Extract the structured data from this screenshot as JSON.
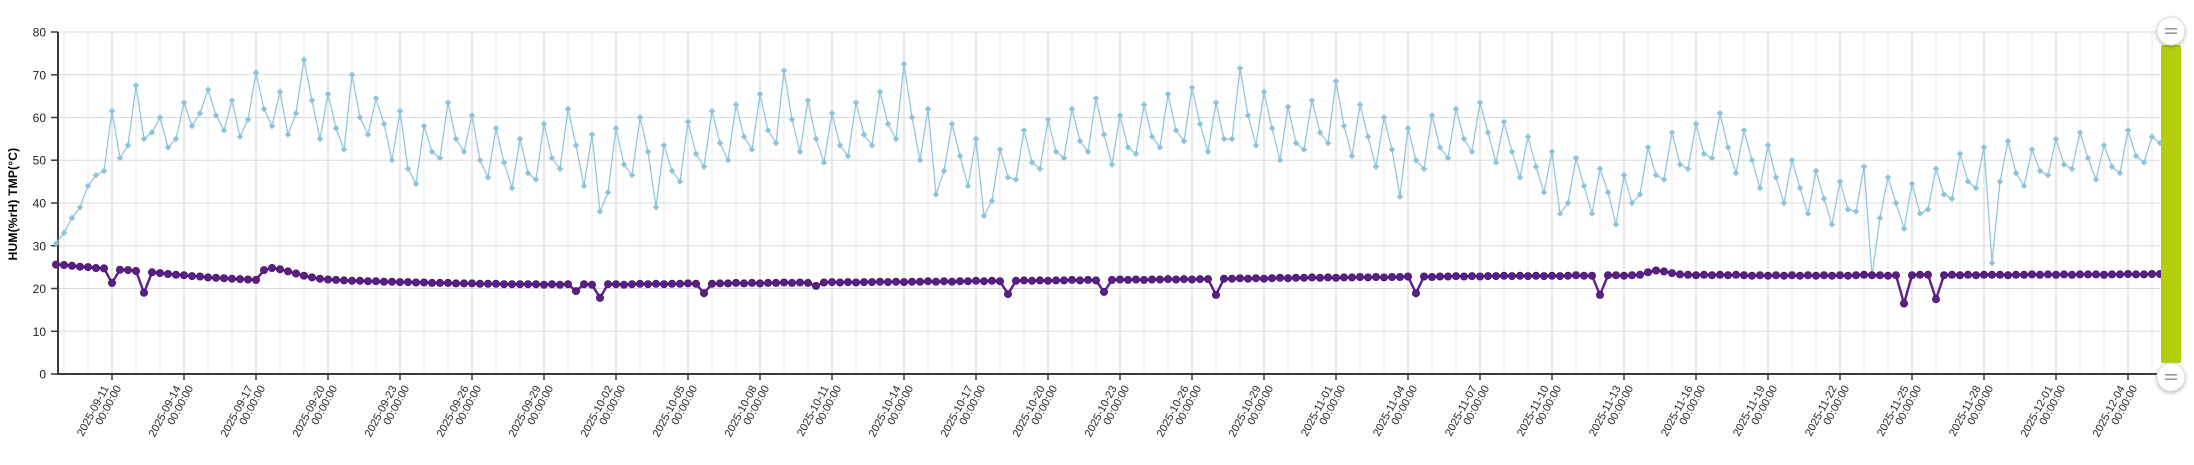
{
  "slider": {
    "bar_color": "#b4ce0c",
    "handle_fill": "#ffffff",
    "handle_border": "#dcdcdc",
    "handle_icon_color": "#9a9a9a"
  },
  "chart_data": {
    "type": "line",
    "title": "",
    "xlabel": "",
    "ylabel": "HUM(%rH) TMP(°C)",
    "ylim": [
      0,
      80
    ],
    "y_ticks": [
      0,
      10,
      20,
      30,
      40,
      50,
      60,
      70,
      80
    ],
    "grid": "on",
    "legend": "none",
    "x_unit": "days offset from 2025-09-11 00:00:00",
    "x_start": -2.3333,
    "x_step": 0.33333,
    "x_tick_interval_days": 3,
    "x_tick_labels": [
      {
        "date": "2025-09-11",
        "time": "00:00:00"
      },
      {
        "date": "2025-09-14",
        "time": "00:00:00"
      },
      {
        "date": "2025-09-17",
        "time": "00:00:00"
      },
      {
        "date": "2025-09-20",
        "time": "00:00:00"
      },
      {
        "date": "2025-09-23",
        "time": "00:00:00"
      },
      {
        "date": "2025-09-26",
        "time": "00:00:00"
      },
      {
        "date": "2025-09-29",
        "time": "00:00:00"
      },
      {
        "date": "2025-10-02",
        "time": "00:00:00"
      },
      {
        "date": "2025-10-05",
        "time": "00:00:00"
      },
      {
        "date": "2025-10-08",
        "time": "00:00:00"
      },
      {
        "date": "2025-10-11",
        "time": "00:00:00"
      },
      {
        "date": "2025-10-14",
        "time": "00:00:00"
      },
      {
        "date": "2025-10-17",
        "time": "00:00:00"
      },
      {
        "date": "2025-10-20",
        "time": "00:00:00"
      },
      {
        "date": "2025-10-23",
        "time": "00:00:00"
      },
      {
        "date": "2025-10-26",
        "time": "00:00:00"
      },
      {
        "date": "2025-10-29",
        "time": "00:00:00"
      },
      {
        "date": "2025-11-01",
        "time": "00:00:00"
      },
      {
        "date": "2025-11-04",
        "time": "00:00:00"
      },
      {
        "date": "2025-11-07",
        "time": "00:00:00"
      },
      {
        "date": "2025-11-10",
        "time": "00:00:00"
      },
      {
        "date": "2025-11-13",
        "time": "00:00:00"
      },
      {
        "date": "2025-11-16",
        "time": "00:00:00"
      },
      {
        "date": "2025-11-19",
        "time": "00:00:00"
      },
      {
        "date": "2025-11-22",
        "time": "00:00:00"
      },
      {
        "date": "2025-11-25",
        "time": "00:00:00"
      },
      {
        "date": "2025-11-28",
        "time": "00:00:00"
      },
      {
        "date": "2025-12-01",
        "time": "00:00:00"
      },
      {
        "date": "2025-12-04",
        "time": "00:00:00"
      }
    ],
    "series": [
      {
        "id": "hum",
        "name": "HUM(%rH)",
        "color": "#8bc3de",
        "marker": "diamond",
        "values": [
          30.5,
          33,
          36.5,
          39,
          44,
          46.5,
          47.5,
          61.5,
          50.5,
          53.5,
          67.5,
          55,
          56.5,
          60,
          53,
          55,
          63.5,
          58,
          61,
          66.5,
          60.5,
          57,
          64,
          55.5,
          59.5,
          70.5,
          62,
          58,
          66,
          56,
          61,
          73.5,
          64,
          55,
          65.5,
          57.5,
          52.5,
          70,
          60,
          56,
          64.5,
          58.5,
          50,
          61.5,
          48,
          44.5,
          58,
          52,
          50.5,
          63.5,
          55,
          52,
          60.5,
          50,
          46,
          57.5,
          49.5,
          43.5,
          55,
          47,
          45.5,
          58.5,
          50.5,
          48,
          62,
          53.5,
          44,
          56,
          38,
          42.5,
          57.5,
          49,
          46.5,
          60,
          52,
          39,
          53.5,
          47.5,
          45,
          59,
          51.5,
          48.5,
          61.5,
          54,
          50,
          63,
          55.5,
          52.5,
          65.5,
          57,
          54,
          71,
          59.5,
          52,
          64,
          55,
          49.5,
          61,
          53.5,
          51,
          63.5,
          56,
          53.5,
          66,
          58.5,
          55,
          72.5,
          60,
          50,
          62,
          42,
          47.5,
          58.5,
          51,
          44,
          55,
          37,
          40.5,
          52.5,
          46,
          45.5,
          57,
          49.5,
          48,
          59.5,
          52,
          50.5,
          62,
          54.5,
          52,
          64.5,
          56,
          49,
          60.5,
          53,
          51.5,
          63,
          55.5,
          53,
          65.5,
          57,
          54.5,
          67,
          58.5,
          52,
          63.5,
          55,
          55,
          71.5,
          60.5,
          53.5,
          66,
          57.5,
          50,
          62.5,
          54,
          52.5,
          64,
          56.5,
          54,
          68.5,
          58,
          51,
          63,
          55.5,
          48.5,
          60,
          52.5,
          41.5,
          57.5,
          50,
          48,
          60.5,
          53,
          50.5,
          62,
          55,
          52,
          63.5,
          56.5,
          49.5,
          59,
          52,
          46,
          55.5,
          48.5,
          42.5,
          52,
          37.5,
          40,
          50.5,
          44,
          37.5,
          48,
          42.5,
          35,
          46.5,
          40,
          42,
          53,
          46.5,
          45.5,
          56.5,
          49,
          48,
          58.5,
          51.5,
          50.5,
          61,
          53,
          47,
          57,
          50,
          43.5,
          53.5,
          46,
          40,
          50,
          43.5,
          37.5,
          47.5,
          41,
          35,
          45,
          38.5,
          38,
          48.5,
          23,
          36.5,
          46,
          40,
          34,
          44.5,
          37.5,
          38.5,
          48,
          42,
          41,
          51.5,
          45,
          43.5,
          53,
          26,
          45,
          54.5,
          47,
          44,
          52.5,
          47.5,
          46.5,
          55,
          49,
          48,
          56.5,
          50.5,
          45.5,
          53.5,
          48.5,
          47,
          57,
          51,
          49.5,
          55.5,
          54
        ]
      },
      {
        "id": "tmp",
        "name": "TMP(°C)",
        "color": "#5b1e87",
        "edge": "#45156b",
        "marker": "circle",
        "values": [
          25.6,
          25.5,
          25.3,
          25.1,
          25,
          24.8,
          24.7,
          21.3,
          24.4,
          24.3,
          24.1,
          19,
          23.8,
          23.6,
          23.4,
          23.2,
          23.1,
          22.9,
          22.8,
          22.6,
          22.5,
          22.4,
          22.3,
          22.2,
          22.1,
          22,
          24.3,
          24.8,
          24.5,
          24,
          23.5,
          23,
          22.6,
          22.3,
          22.1,
          22,
          21.9,
          21.8,
          21.8,
          21.7,
          21.7,
          21.6,
          21.6,
          21.5,
          21.5,
          21.4,
          21.4,
          21.3,
          21.3,
          21.3,
          21.2,
          21.2,
          21.2,
          21.1,
          21.1,
          21.1,
          21,
          21,
          21,
          21,
          21,
          20.9,
          21,
          20.9,
          21,
          19.4,
          21,
          20.9,
          17.8,
          21,
          21,
          20.9,
          21,
          21.1,
          21,
          21.1,
          21,
          21.1,
          21.1,
          21.2,
          21.1,
          18.9,
          21.1,
          21.2,
          21.2,
          21.3,
          21.2,
          21.3,
          21.2,
          21.3,
          21.3,
          21.4,
          21.3,
          21.4,
          21.3,
          20.6,
          21.4,
          21.5,
          21.4,
          21.5,
          21.4,
          21.5,
          21.5,
          21.6,
          21.5,
          21.6,
          21.5,
          21.6,
          21.6,
          21.7,
          21.6,
          21.7,
          21.6,
          21.7,
          21.7,
          21.8,
          21.7,
          21.8,
          21.7,
          18.7,
          21.8,
          21.9,
          21.8,
          21.9,
          21.8,
          21.9,
          21.9,
          22,
          21.9,
          22,
          21.9,
          19.2,
          22,
          22.1,
          22,
          22.1,
          22,
          22.1,
          22.1,
          22.2,
          22.1,
          22.2,
          22.1,
          22.2,
          22.2,
          18.5,
          22.3,
          22.3,
          22.4,
          22.3,
          22.4,
          22.3,
          22.4,
          22.5,
          22.4,
          22.5,
          22.5,
          22.6,
          22.5,
          22.6,
          22.5,
          22.6,
          22.6,
          22.7,
          22.6,
          22.7,
          22.6,
          22.7,
          22.7,
          22.8,
          18.9,
          22.8,
          22.7,
          22.8,
          22.8,
          22.9,
          22.8,
          22.9,
          22.8,
          22.9,
          22.9,
          23,
          22.9,
          23,
          22.9,
          23,
          22.9,
          23,
          22.9,
          23,
          23.1,
          23,
          23,
          18.5,
          23.1,
          23.1,
          23,
          23.1,
          23.2,
          23.8,
          24.2,
          24,
          23.6,
          23.3,
          23.2,
          23.1,
          23.2,
          23.1,
          23.2,
          23.1,
          23.2,
          23.1,
          23,
          23.1,
          23,
          23.1,
          23,
          23.1,
          23,
          23.1,
          23,
          23.1,
          23,
          23.1,
          23,
          23.1,
          23.2,
          23.1,
          23.1,
          23,
          23.1,
          16.5,
          23.1,
          23.2,
          23.2,
          17.5,
          23.1,
          23.2,
          23.1,
          23.2,
          23.1,
          23.2,
          23.2,
          23.2,
          23.1,
          23.2,
          23.2,
          23.3,
          23.2,
          23.3,
          23.2,
          23.3,
          23.2,
          23.3,
          23.3,
          23.3,
          23.2,
          23.3,
          23.3,
          23.4,
          23.3,
          23.3,
          23.4,
          23.4
        ]
      }
    ]
  }
}
